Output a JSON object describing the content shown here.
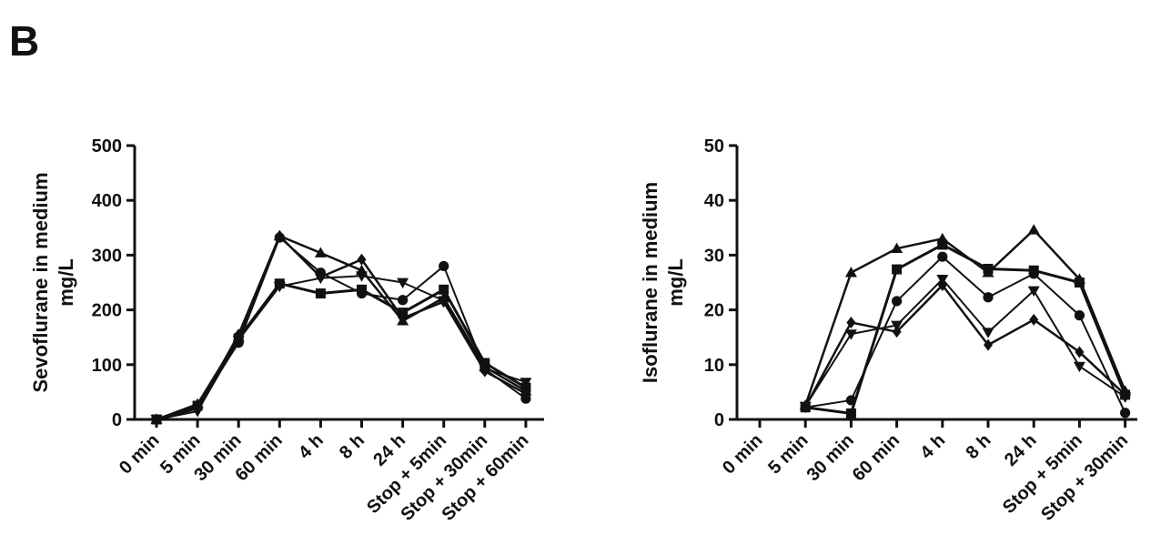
{
  "panel_label": "B",
  "chart_data": [
    {
      "type": "line",
      "ylabel_line1": "Sevoflurane in medium",
      "ylabel_line2": "mg/L",
      "ylim": [
        0,
        500
      ],
      "yticks": [
        "0",
        "100",
        "200",
        "300",
        "400",
        "500"
      ],
      "categories": [
        "0 min",
        "5 min",
        "30 min",
        "60 min",
        "4 h",
        "8 h",
        "24 h",
        "Stop + 5min",
        "Stop + 30min",
        "Stop +  60min"
      ],
      "series": [
        {
          "name": "circle",
          "marker": "circle",
          "values": [
            0,
            22,
            140,
            332,
            268,
            230,
            218,
            280,
            92,
            38
          ]
        },
        {
          "name": "square",
          "marker": "square",
          "values": [
            0,
            25,
            148,
            248,
            230,
            237,
            195,
            237,
            103,
            58
          ]
        },
        {
          "name": "triangle-up",
          "marker": "triangle-up",
          "values": [
            0,
            28,
            150,
            335,
            304,
            272,
            180,
            222,
            96,
            52
          ]
        },
        {
          "name": "triangle-down",
          "marker": "triangle-down",
          "values": [
            0,
            15,
            145,
            243,
            258,
            262,
            250,
            217,
            93,
            68
          ]
        },
        {
          "name": "diamond",
          "marker": "diamond",
          "values": [
            0,
            20,
            155,
            335,
            260,
            292,
            185,
            215,
            88,
            47
          ]
        }
      ]
    },
    {
      "type": "line",
      "ylabel_line1": "Isoflurane in medium",
      "ylabel_line2": "mg/L",
      "ylim": [
        0,
        50
      ],
      "yticks": [
        "0",
        "10",
        "20",
        "30",
        "40",
        "50"
      ],
      "categories": [
        "0 min",
        "5 min",
        "30 min",
        "60 min",
        "4 h",
        "8 h",
        "24 h",
        "Stop + 5min",
        "Stop + 30min"
      ],
      "series": [
        {
          "name": "circle",
          "marker": "circle",
          "values": [
            null,
            2.2,
            3.5,
            21.6,
            29.7,
            22.3,
            26.6,
            19.0,
            1.2
          ]
        },
        {
          "name": "square",
          "marker": "square",
          "values": [
            null,
            2.2,
            1.1,
            27.4,
            31.9,
            27.5,
            27.2,
            25.0,
            4.5
          ]
        },
        {
          "name": "triangle-up",
          "marker": "triangle-up",
          "values": [
            null,
            2.6,
            26.8,
            31.2,
            33.0,
            26.8,
            34.6,
            25.6,
            5.2
          ]
        },
        {
          "name": "triangle-down",
          "marker": "triangle-down",
          "values": [
            null,
            2.4,
            15.6,
            17.2,
            25.6,
            15.9,
            23.5,
            9.7,
            4.1
          ]
        },
        {
          "name": "diamond",
          "marker": "diamond",
          "values": [
            null,
            2.3,
            17.7,
            16.0,
            24.5,
            13.6,
            18.2,
            12.3,
            4.5
          ]
        }
      ]
    }
  ]
}
